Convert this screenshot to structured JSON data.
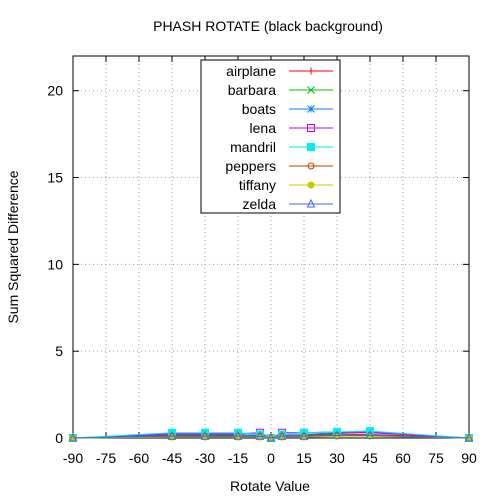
{
  "chart_data": {
    "type": "line",
    "title": "PHASH ROTATE (black background)",
    "xlabel": "Rotate Value",
    "ylabel": "Sum Squared Difference",
    "xlim": [
      -90,
      90
    ],
    "ylim": [
      0,
      22
    ],
    "xticks": [
      -90,
      -75,
      -60,
      -45,
      -30,
      -15,
      0,
      15,
      30,
      45,
      60,
      75,
      90
    ],
    "xtick_labels": [
      "-90",
      "-75",
      "-60",
      "-45",
      "-30",
      "-15",
      "0",
      "15",
      "30",
      "45",
      "60",
      "75",
      "90"
    ],
    "yticks": [
      0,
      5,
      10,
      15,
      20
    ],
    "ytick_labels": [
      "0",
      "5",
      "10",
      "15",
      "20"
    ],
    "grid": true,
    "legend_position": "top-center",
    "x": [
      -90,
      -45,
      -30,
      -15,
      -5,
      0,
      5,
      15,
      30,
      45,
      90
    ],
    "series": [
      {
        "name": "airplane",
        "color": "#ff0000",
        "marker": "plus",
        "values": [
          0.0,
          0.15,
          0.15,
          0.15,
          0.1,
          0.0,
          0.1,
          0.15,
          0.25,
          0.2,
          0.0
        ]
      },
      {
        "name": "barbara",
        "color": "#00c000",
        "marker": "cross",
        "values": [
          0.0,
          0.1,
          0.1,
          0.1,
          0.1,
          0.0,
          0.1,
          0.1,
          0.2,
          0.15,
          0.0
        ]
      },
      {
        "name": "boats",
        "color": "#0080ff",
        "marker": "star",
        "values": [
          0.0,
          0.2,
          0.2,
          0.2,
          0.15,
          0.0,
          0.15,
          0.2,
          0.3,
          0.35,
          0.0
        ]
      },
      {
        "name": "lena",
        "color": "#c000ff",
        "marker": "square-open",
        "values": [
          0.0,
          0.25,
          0.25,
          0.25,
          0.3,
          0.0,
          0.3,
          0.3,
          0.35,
          0.3,
          0.0
        ]
      },
      {
        "name": "mandril",
        "color": "#00eeee",
        "marker": "square-filled",
        "values": [
          0.0,
          0.3,
          0.3,
          0.3,
          0.2,
          0.0,
          0.2,
          0.3,
          0.35,
          0.4,
          0.0
        ]
      },
      {
        "name": "peppers",
        "color": "#c04000",
        "marker": "circle-open",
        "values": [
          0.0,
          0.1,
          0.1,
          0.1,
          0.1,
          0.0,
          0.1,
          0.1,
          0.15,
          0.15,
          0.0
        ]
      },
      {
        "name": "tiffany",
        "color": "#c8c800",
        "marker": "circle-filled",
        "values": [
          0.0,
          0.05,
          0.05,
          0.05,
          0.05,
          0.0,
          0.05,
          0.05,
          0.1,
          0.1,
          0.0
        ]
      },
      {
        "name": "zelda",
        "color": "#4169e1",
        "marker": "triangle-open",
        "values": [
          0.0,
          0.1,
          0.1,
          0.1,
          0.1,
          0.0,
          0.1,
          0.1,
          0.15,
          0.15,
          0.0
        ]
      }
    ]
  }
}
